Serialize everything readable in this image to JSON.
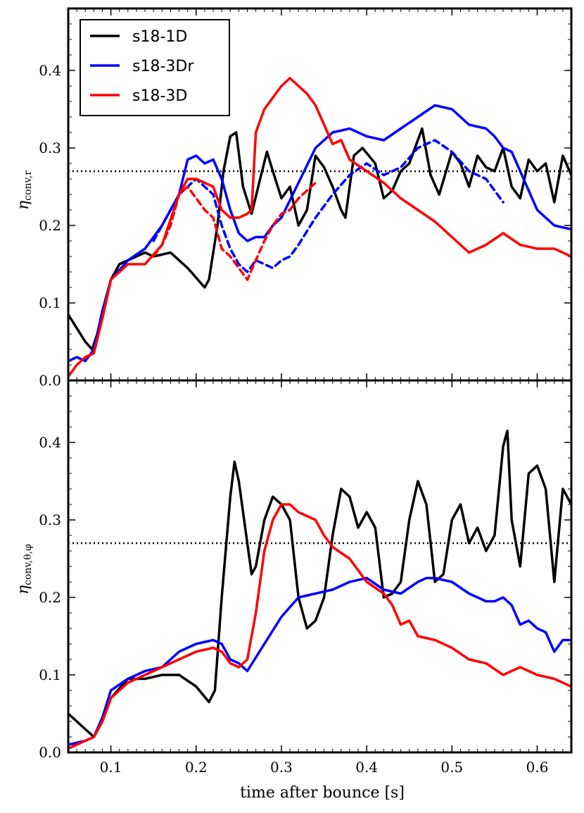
{
  "figure": {
    "xlabel": "time after bounce [s]"
  },
  "chart_data": [
    {
      "type": "line",
      "ylabel_main": "η",
      "ylabel_sub": "conv,r",
      "xlim": [
        0.05,
        0.64
      ],
      "ylim": [
        0.0,
        0.48
      ],
      "xticks": [
        0.1,
        0.2,
        0.3,
        0.4,
        0.5,
        0.6
      ],
      "xtick_labels": [
        "0.1",
        "0.2",
        "0.3",
        "0.4",
        "0.5",
        "0.6"
      ],
      "yticks": [
        0.0,
        0.1,
        0.2,
        0.3,
        0.4
      ],
      "ytick_labels": [
        "0.0",
        "0.1",
        "0.2",
        "0.3",
        "0.4"
      ],
      "reference_line": 0.27,
      "legend": {
        "placement": "top-left",
        "entries": [
          "s18-1D",
          "s18-3Dr",
          "s18-3D"
        ]
      },
      "series": [
        {
          "name": "s18-1D",
          "color": "#000000",
          "style": "solid",
          "x": [
            0.05,
            0.07,
            0.078,
            0.09,
            0.1,
            0.11,
            0.13,
            0.14,
            0.15,
            0.17,
            0.19,
            0.21,
            0.215,
            0.225,
            0.232,
            0.24,
            0.247,
            0.255,
            0.265,
            0.275,
            0.283,
            0.29,
            0.3,
            0.31,
            0.32,
            0.33,
            0.34,
            0.35,
            0.36,
            0.37,
            0.375,
            0.385,
            0.395,
            0.41,
            0.42,
            0.43,
            0.44,
            0.45,
            0.465,
            0.475,
            0.485,
            0.5,
            0.51,
            0.52,
            0.53,
            0.54,
            0.55,
            0.56,
            0.57,
            0.58,
            0.59,
            0.6,
            0.61,
            0.62,
            0.63,
            0.64
          ],
          "y": [
            0.085,
            0.05,
            0.04,
            0.08,
            0.13,
            0.15,
            0.16,
            0.165,
            0.16,
            0.165,
            0.145,
            0.12,
            0.13,
            0.2,
            0.27,
            0.315,
            0.32,
            0.25,
            0.215,
            0.26,
            0.295,
            0.27,
            0.235,
            0.25,
            0.2,
            0.22,
            0.29,
            0.275,
            0.25,
            0.22,
            0.21,
            0.29,
            0.3,
            0.28,
            0.235,
            0.245,
            0.27,
            0.28,
            0.325,
            0.265,
            0.24,
            0.295,
            0.28,
            0.25,
            0.29,
            0.275,
            0.27,
            0.3,
            0.25,
            0.235,
            0.285,
            0.27,
            0.28,
            0.23,
            0.29,
            0.265
          ]
        },
        {
          "name": "s18-3Dr",
          "color": "#0000ff",
          "style": "solid",
          "x": [
            0.05,
            0.06,
            0.07,
            0.08,
            0.09,
            0.1,
            0.12,
            0.14,
            0.16,
            0.18,
            0.19,
            0.2,
            0.21,
            0.22,
            0.23,
            0.24,
            0.25,
            0.26,
            0.27,
            0.28,
            0.29,
            0.3,
            0.32,
            0.34,
            0.36,
            0.38,
            0.4,
            0.42,
            0.44,
            0.46,
            0.48,
            0.5,
            0.52,
            0.54,
            0.55,
            0.56,
            0.57,
            0.58,
            0.6,
            0.62,
            0.64
          ],
          "y": [
            0.025,
            0.03,
            0.025,
            0.04,
            0.09,
            0.13,
            0.155,
            0.17,
            0.2,
            0.24,
            0.285,
            0.29,
            0.28,
            0.285,
            0.26,
            0.22,
            0.19,
            0.18,
            0.185,
            0.185,
            0.2,
            0.21,
            0.255,
            0.3,
            0.32,
            0.325,
            0.315,
            0.31,
            0.325,
            0.34,
            0.355,
            0.35,
            0.33,
            0.325,
            0.315,
            0.3,
            0.295,
            0.27,
            0.22,
            0.2,
            0.195
          ]
        },
        {
          "name": "s18-3Dr (dashed)",
          "color": "#0000ff",
          "style": "dashed",
          "x": [
            0.15,
            0.17,
            0.18,
            0.19,
            0.2,
            0.21,
            0.22,
            0.23,
            0.24,
            0.25,
            0.26,
            0.27,
            0.28,
            0.29,
            0.3,
            0.31,
            0.32,
            0.34,
            0.36,
            0.38,
            0.4,
            0.42,
            0.44,
            0.46,
            0.48,
            0.5,
            0.52,
            0.54,
            0.56
          ],
          "y": [
            0.18,
            0.22,
            0.24,
            0.25,
            0.26,
            0.25,
            0.24,
            0.2,
            0.17,
            0.15,
            0.14,
            0.155,
            0.15,
            0.145,
            0.155,
            0.16,
            0.175,
            0.21,
            0.24,
            0.265,
            0.28,
            0.265,
            0.275,
            0.3,
            0.31,
            0.295,
            0.27,
            0.26,
            0.23
          ]
        },
        {
          "name": "s18-3D",
          "color": "#ff0000",
          "style": "solid",
          "x": [
            0.05,
            0.06,
            0.07,
            0.08,
            0.09,
            0.1,
            0.12,
            0.14,
            0.16,
            0.18,
            0.19,
            0.2,
            0.21,
            0.22,
            0.23,
            0.24,
            0.25,
            0.26,
            0.265,
            0.27,
            0.28,
            0.29,
            0.3,
            0.31,
            0.32,
            0.33,
            0.34,
            0.35,
            0.36,
            0.37,
            0.38,
            0.4,
            0.42,
            0.44,
            0.46,
            0.48,
            0.5,
            0.52,
            0.54,
            0.56,
            0.58,
            0.6,
            0.62,
            0.64
          ],
          "y": [
            0.005,
            0.02,
            0.03,
            0.035,
            0.08,
            0.13,
            0.15,
            0.15,
            0.175,
            0.24,
            0.26,
            0.26,
            0.255,
            0.25,
            0.22,
            0.21,
            0.21,
            0.215,
            0.22,
            0.32,
            0.35,
            0.365,
            0.38,
            0.39,
            0.38,
            0.37,
            0.355,
            0.33,
            0.305,
            0.31,
            0.285,
            0.27,
            0.255,
            0.235,
            0.22,
            0.205,
            0.185,
            0.165,
            0.175,
            0.19,
            0.175,
            0.17,
            0.17,
            0.16
          ]
        },
        {
          "name": "s18-3D (dashed)",
          "color": "#ff0000",
          "style": "dashed",
          "x": [
            0.15,
            0.16,
            0.17,
            0.18,
            0.19,
            0.2,
            0.21,
            0.22,
            0.23,
            0.24,
            0.25,
            0.26,
            0.27,
            0.28,
            0.29,
            0.3,
            0.31,
            0.32,
            0.33,
            0.34
          ],
          "y": [
            0.16,
            0.175,
            0.2,
            0.24,
            0.25,
            0.235,
            0.22,
            0.21,
            0.17,
            0.16,
            0.145,
            0.13,
            0.155,
            0.18,
            0.2,
            0.215,
            0.22,
            0.235,
            0.245,
            0.255
          ]
        }
      ]
    },
    {
      "type": "line",
      "ylabel_main": "η",
      "ylabel_sub": "conv,θ,φ",
      "xlim": [
        0.05,
        0.64
      ],
      "ylim": [
        0.0,
        0.48
      ],
      "xticks": [
        0.1,
        0.2,
        0.3,
        0.4,
        0.5,
        0.6
      ],
      "xtick_labels": [
        "0.1",
        "0.2",
        "0.3",
        "0.4",
        "0.5",
        "0.6"
      ],
      "yticks": [
        0.0,
        0.1,
        0.2,
        0.3,
        0.4
      ],
      "ytick_labels": [
        "0.0",
        "0.1",
        "0.2",
        "0.3",
        "0.4"
      ],
      "reference_line": 0.27,
      "series": [
        {
          "name": "s18-1D",
          "color": "#000000",
          "style": "solid",
          "x": [
            0.05,
            0.06,
            0.07,
            0.08,
            0.09,
            0.1,
            0.12,
            0.14,
            0.16,
            0.18,
            0.2,
            0.215,
            0.222,
            0.23,
            0.24,
            0.245,
            0.25,
            0.26,
            0.265,
            0.27,
            0.28,
            0.29,
            0.3,
            0.31,
            0.32,
            0.33,
            0.34,
            0.35,
            0.36,
            0.37,
            0.38,
            0.39,
            0.4,
            0.41,
            0.42,
            0.43,
            0.44,
            0.45,
            0.46,
            0.47,
            0.48,
            0.49,
            0.5,
            0.51,
            0.52,
            0.53,
            0.54,
            0.55,
            0.56,
            0.565,
            0.57,
            0.58,
            0.59,
            0.6,
            0.61,
            0.62,
            0.63,
            0.64
          ],
          "y": [
            0.05,
            0.04,
            0.03,
            0.02,
            0.04,
            0.07,
            0.095,
            0.095,
            0.1,
            0.1,
            0.085,
            0.065,
            0.08,
            0.2,
            0.33,
            0.375,
            0.35,
            0.27,
            0.23,
            0.24,
            0.3,
            0.33,
            0.32,
            0.3,
            0.2,
            0.16,
            0.17,
            0.2,
            0.28,
            0.34,
            0.33,
            0.29,
            0.31,
            0.29,
            0.2,
            0.205,
            0.22,
            0.3,
            0.35,
            0.32,
            0.22,
            0.23,
            0.3,
            0.32,
            0.27,
            0.29,
            0.26,
            0.28,
            0.395,
            0.415,
            0.3,
            0.24,
            0.36,
            0.37,
            0.34,
            0.22,
            0.34,
            0.32
          ]
        },
        {
          "name": "s18-3Dr",
          "color": "#0000ff",
          "style": "solid",
          "x": [
            0.05,
            0.07,
            0.08,
            0.09,
            0.1,
            0.12,
            0.14,
            0.16,
            0.18,
            0.2,
            0.22,
            0.23,
            0.24,
            0.25,
            0.26,
            0.28,
            0.3,
            0.32,
            0.34,
            0.36,
            0.38,
            0.4,
            0.42,
            0.44,
            0.46,
            0.47,
            0.48,
            0.5,
            0.52,
            0.54,
            0.55,
            0.56,
            0.57,
            0.58,
            0.59,
            0.6,
            0.61,
            0.62,
            0.63,
            0.64
          ],
          "y": [
            0.01,
            0.015,
            0.02,
            0.045,
            0.08,
            0.095,
            0.105,
            0.11,
            0.13,
            0.14,
            0.145,
            0.14,
            0.12,
            0.115,
            0.105,
            0.14,
            0.175,
            0.2,
            0.205,
            0.21,
            0.22,
            0.225,
            0.21,
            0.205,
            0.22,
            0.225,
            0.225,
            0.22,
            0.205,
            0.195,
            0.195,
            0.2,
            0.19,
            0.165,
            0.17,
            0.16,
            0.155,
            0.13,
            0.145,
            0.145
          ]
        },
        {
          "name": "s18-3D",
          "color": "#ff0000",
          "style": "solid",
          "x": [
            0.05,
            0.06,
            0.07,
            0.08,
            0.09,
            0.1,
            0.12,
            0.14,
            0.16,
            0.18,
            0.2,
            0.22,
            0.23,
            0.24,
            0.25,
            0.26,
            0.27,
            0.28,
            0.29,
            0.3,
            0.31,
            0.32,
            0.33,
            0.34,
            0.35,
            0.36,
            0.38,
            0.4,
            0.42,
            0.43,
            0.44,
            0.45,
            0.46,
            0.48,
            0.5,
            0.52,
            0.54,
            0.56,
            0.58,
            0.6,
            0.62,
            0.64
          ],
          "y": [
            0.005,
            0.01,
            0.015,
            0.02,
            0.04,
            0.07,
            0.09,
            0.1,
            0.11,
            0.12,
            0.13,
            0.135,
            0.13,
            0.115,
            0.11,
            0.12,
            0.18,
            0.26,
            0.3,
            0.32,
            0.32,
            0.31,
            0.305,
            0.3,
            0.28,
            0.265,
            0.25,
            0.22,
            0.205,
            0.19,
            0.165,
            0.17,
            0.15,
            0.145,
            0.135,
            0.12,
            0.115,
            0.1,
            0.11,
            0.1,
            0.095,
            0.085
          ]
        }
      ]
    }
  ]
}
